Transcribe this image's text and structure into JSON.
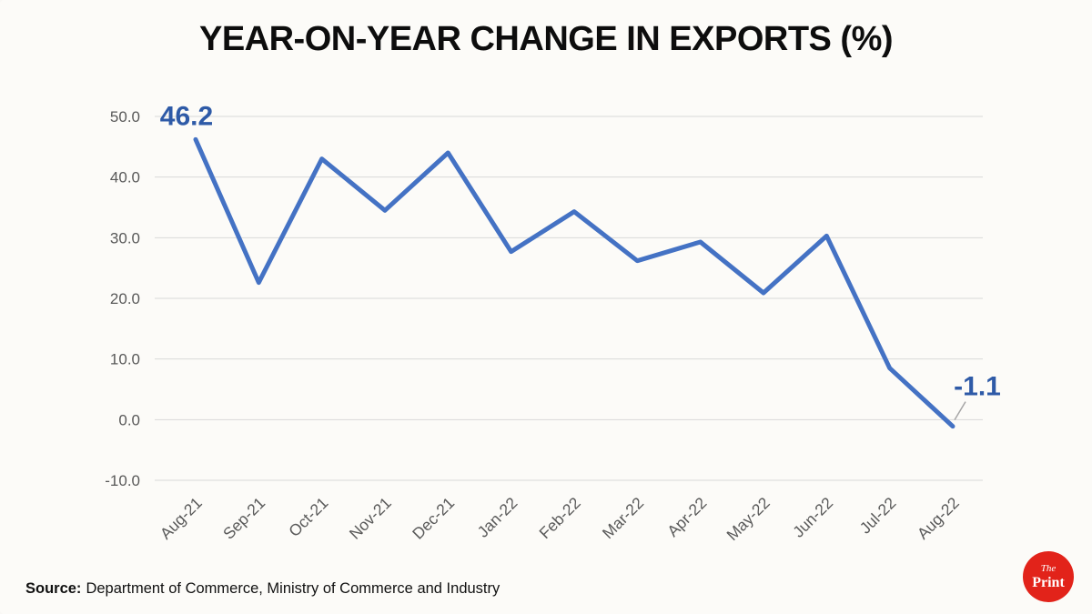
{
  "title": "YEAR-ON-YEAR CHANGE IN EXPORTS (%)",
  "source": {
    "label": "Source:",
    "text": "Department of Commerce, Ministry of Commerce and Industry"
  },
  "logo": {
    "line1": "The",
    "line2": "Print",
    "color": "#e2231a"
  },
  "chart_data": {
    "type": "line",
    "title": "YEAR-ON-YEAR CHANGE IN EXPORTS (%)",
    "categories": [
      "Aug-21",
      "Sep-21",
      "Oct-21",
      "Nov-21",
      "Dec-21",
      "Jan-22",
      "Feb-22",
      "Mar-22",
      "Apr-22",
      "May-22",
      "Jun-22",
      "Jul-22",
      "Aug-22"
    ],
    "values": [
      46.2,
      22.6,
      43.0,
      34.5,
      44.0,
      27.7,
      34.3,
      26.2,
      29.3,
      20.9,
      30.3,
      8.5,
      -1.1
    ],
    "ylim": [
      -10,
      50
    ],
    "yticks": [
      50,
      40,
      30,
      20,
      10,
      0,
      -10
    ],
    "ytick_labels": [
      "50.0",
      "40.0",
      "30.0",
      "20.0",
      "10.0",
      "0.0",
      "-10.0"
    ],
    "xlabel": "",
    "ylabel": "",
    "grid": true,
    "legend": "none",
    "line_color": "#4472c4",
    "gridline_color": "#d9d9d9",
    "axis_label_color": "#595959",
    "annotation_color": "#2e5aa7",
    "annotations": [
      {
        "index": 0,
        "text": "46.2"
      },
      {
        "index": 12,
        "text": "-1.1"
      }
    ]
  }
}
